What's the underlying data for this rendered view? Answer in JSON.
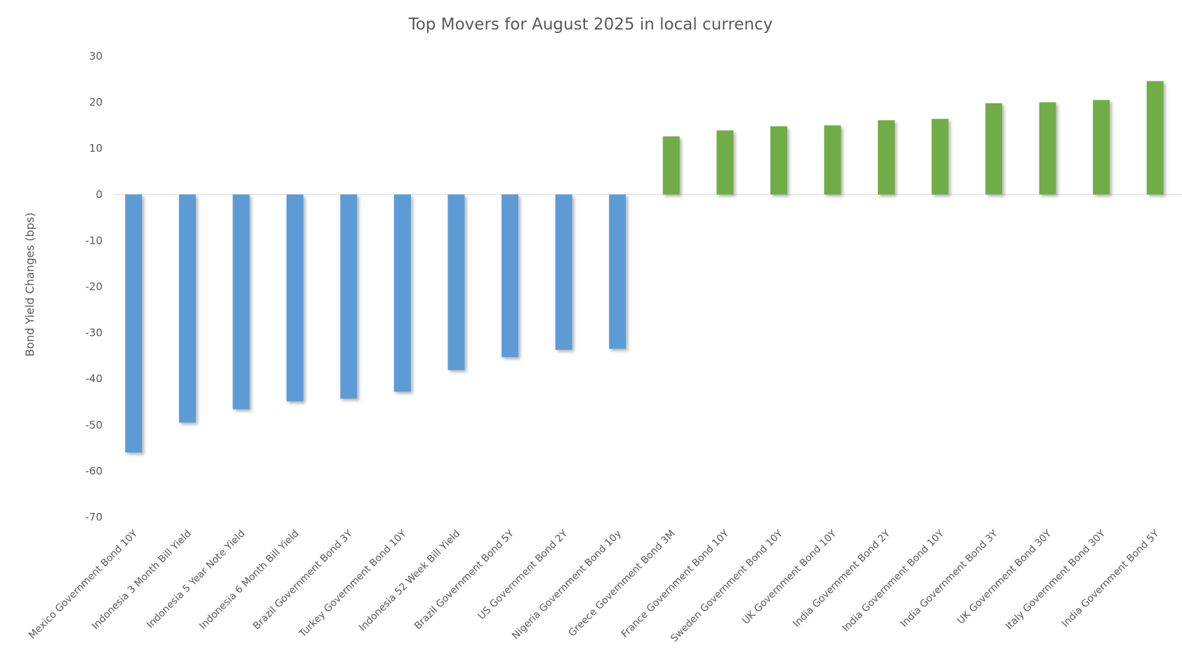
{
  "chart_data": {
    "type": "bar",
    "title": "Top Movers for August 2025 in local currency",
    "xlabel": "",
    "ylabel": "Bond Yield Changes (bps)",
    "ylim": [
      -70,
      30
    ],
    "yticks": [
      30,
      20,
      10,
      0,
      -10,
      -20,
      -30,
      -40,
      -50,
      -60,
      -70
    ],
    "grid": false,
    "legend": "none",
    "colors": {
      "negative": "#5B9BD5",
      "positive": "#70AD47",
      "axis": "#D9D9D9",
      "text": "#595959"
    },
    "categories": [
      "Mexico Government Bond 10Y",
      "Indonesia 3 Month Bill Yield",
      "Indonesia 5 Year Note Yield",
      "Indonesia 6 Month Bill Yield",
      "Brazil Government Bond 3Y",
      "Turkey Government Bond 10Y",
      "Indonesia 52 Week Bill Yield",
      "Brazil Government Bond 5Y",
      "US Government Bond 2Y",
      "Nigeria Government Bond 10y",
      "Greece Government Bond 3M",
      "France Government Bond 10Y",
      "Sweden Government Bond 10Y",
      "UK Government Bond 10Y",
      "India Government Bond 2Y",
      "India Government Bond 10Y",
      "India Government Bond 3Y",
      "UK Government Bond 30Y",
      "Italy Government Bond 30Y",
      "India Government Bond 5Y"
    ],
    "values": [
      -56,
      -49.5,
      -46.6,
      -44.9,
      -44.3,
      -42.8,
      -38.1,
      -35.3,
      -33.7,
      -33.5,
      12.6,
      13.9,
      14.8,
      15,
      16.1,
      16.4,
      19.8,
      20,
      20.5,
      24.6
    ]
  }
}
